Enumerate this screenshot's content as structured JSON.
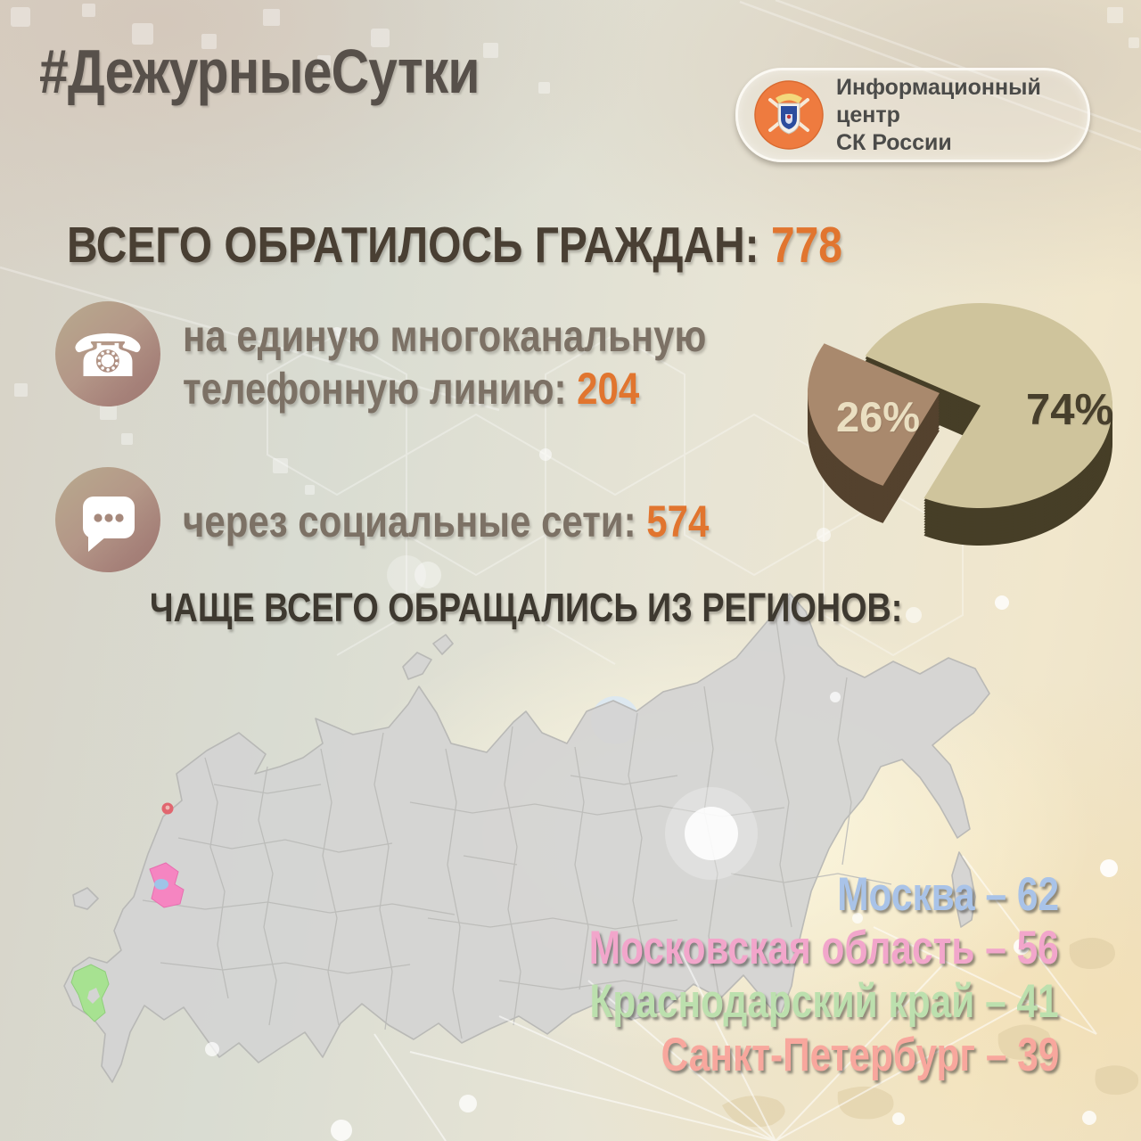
{
  "hashtag": "#ДежурныеСутки",
  "badge": {
    "org_line1": "Информационный центр",
    "org_line2": "СК России"
  },
  "stats": {
    "total_label": "ВСЕГО ОБРАТИЛОСЬ ГРАЖДАН:",
    "total_value": "778",
    "phone_line1": "на единую многоканальную",
    "phone_line2": "телефонную линию:",
    "phone_value": "204",
    "social_label": "через социальные сети:",
    "social_value": "574"
  },
  "regions_heading": "ЧАЩЕ ВСЕГО ОБРАЩАЛИСЬ ИЗ РЕГИОНОВ:",
  "regions": [
    {
      "label": "Москва – 62",
      "name": "Москва",
      "value": 62,
      "color": "#a9c3e8"
    },
    {
      "label": "Московская область – 56",
      "name": "Московская область",
      "value": 56,
      "color": "#f2a6cb"
    },
    {
      "label": "Краснодарский край – 41",
      "name": "Краснодарский край",
      "value": 41,
      "color": "#bce0ae"
    },
    {
      "label": "Санкт-Петербург – 39",
      "name": "Санкт-Петербург",
      "value": 39,
      "color": "#f8a79d"
    }
  ],
  "colors": {
    "accent_orange": "#e1752f",
    "heading_dark": "#493f33",
    "pie_main": "#cfc49c",
    "pie_secondary": "#a9896d"
  },
  "chart_data": {
    "type": "pie",
    "style": "3d-exploded",
    "legend": "none",
    "slices": [
      {
        "label": "74%",
        "value": 74,
        "color": "#cfc49c"
      },
      {
        "label": "26%",
        "value": 26,
        "color": "#a9896d"
      }
    ]
  }
}
